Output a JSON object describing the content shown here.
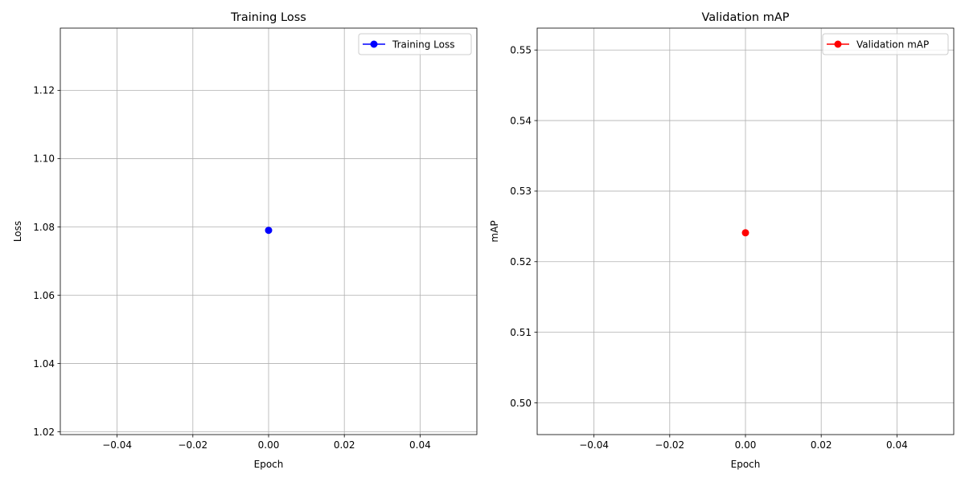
{
  "chart_data": [
    {
      "type": "line",
      "title": "Training Loss",
      "xlabel": "Epoch",
      "ylabel": "Loss",
      "xlim": [
        -0.055,
        0.055
      ],
      "ylim": [
        1.0192,
        1.1382
      ],
      "xticks": [
        -0.04,
        -0.02,
        0.0,
        0.02,
        0.04
      ],
      "xtick_labels": [
        "−0.04",
        "−0.02",
        "0.00",
        "0.02",
        "0.04"
      ],
      "yticks": [
        1.02,
        1.04,
        1.06,
        1.08,
        1.1,
        1.12
      ],
      "ytick_labels": [
        "1.02",
        "1.04",
        "1.06",
        "1.08",
        "1.10",
        "1.12"
      ],
      "grid": true,
      "legend_position": "top-right",
      "series": [
        {
          "name": "Training Loss",
          "color": "#0000ff",
          "marker": "circle",
          "x": [
            0
          ],
          "y": [
            1.079
          ]
        }
      ]
    },
    {
      "type": "line",
      "title": "Validation mAP",
      "xlabel": "Epoch",
      "ylabel": "mAP",
      "xlim": [
        -0.055,
        0.055
      ],
      "ylim": [
        0.4955,
        0.5531
      ],
      "xticks": [
        -0.04,
        -0.02,
        0.0,
        0.02,
        0.04
      ],
      "xtick_labels": [
        "−0.04",
        "−0.02",
        "0.00",
        "0.02",
        "0.04"
      ],
      "yticks": [
        0.5,
        0.51,
        0.52,
        0.53,
        0.54,
        0.55
      ],
      "ytick_labels": [
        "0.50",
        "0.51",
        "0.52",
        "0.53",
        "0.54",
        "0.55"
      ],
      "grid": true,
      "legend_position": "top-right",
      "series": [
        {
          "name": "Validation mAP",
          "color": "#ff0000",
          "marker": "circle",
          "x": [
            0
          ],
          "y": [
            0.5241
          ]
        }
      ]
    }
  ]
}
